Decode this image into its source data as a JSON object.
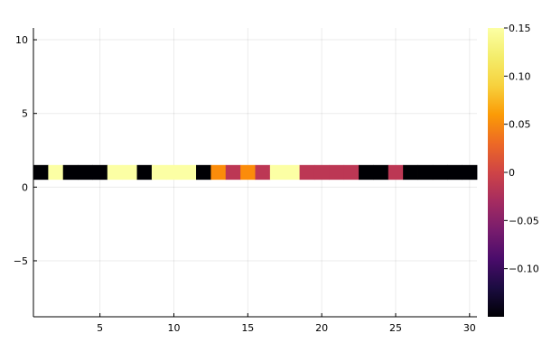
{
  "chart_data": {
    "type": "heatmap",
    "title": "",
    "xlabel": "",
    "ylabel": "",
    "xlim": [
      0.5,
      30.5
    ],
    "ylim": [
      -8.8,
      10.8
    ],
    "grid": true,
    "legend": "none",
    "x_ticks": [
      5,
      10,
      15,
      20,
      25,
      30
    ],
    "x_tick_labels": [
      "5",
      "10",
      "15",
      "20",
      "25",
      "30"
    ],
    "y_ticks": [
      -5,
      0,
      5,
      10
    ],
    "y_tick_labels": [
      "−5",
      "0",
      "5",
      "10"
    ],
    "row": {
      "y_center": 1,
      "height": 1
    },
    "x": [
      1,
      2,
      3,
      4,
      5,
      6,
      7,
      8,
      9,
      10,
      11,
      12,
      13,
      14,
      15,
      16,
      17,
      18,
      19,
      20,
      21,
      22,
      23,
      24,
      25,
      26,
      27,
      28,
      29,
      30
    ],
    "values": [
      -0.15,
      0.15,
      -0.15,
      -0.15,
      -0.15,
      0.15,
      0.15,
      -0.15,
      0.15,
      0.15,
      0.15,
      -0.15,
      0.1,
      0.0,
      0.1,
      0.0,
      0.15,
      0.15,
      0.0,
      0.0,
      0.0,
      0.0,
      -0.15,
      -0.15,
      0.0,
      -0.15,
      -0.15,
      -0.15,
      -0.15,
      -0.15
    ],
    "colorbar": {
      "colormap": "inferno",
      "range": [
        -0.15,
        0.15
      ],
      "ticks": [
        0.15,
        0.1,
        0.05,
        0,
        -0.05,
        -0.1
      ],
      "tick_labels": [
        "0.15",
        "0.10",
        "0.05",
        "0",
        "−0.05",
        "−0.10"
      ]
    },
    "colors": {
      "min": "#000004",
      "mid": "#bc3754",
      "high": "#fb8c0a",
      "max": "#fcffa4"
    }
  }
}
